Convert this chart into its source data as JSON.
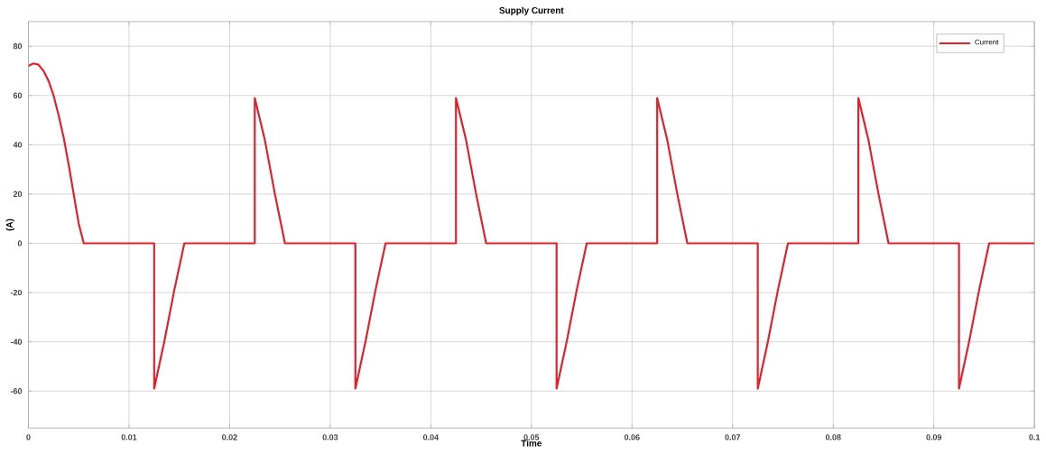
{
  "chart_data": {
    "type": "line",
    "title": "Supply Current",
    "xlabel": "Time",
    "ylabel": "(A)",
    "x": [
      0,
      0.0005,
      0.001,
      0.0015,
      0.002,
      0.0025,
      0.003,
      0.0035,
      0.004,
      0.0045,
      0.005,
      0.0055,
      0.0125,
      0.0125,
      0.0135,
      0.0145,
      0.0155,
      0.0225,
      0.0225,
      0.0235,
      0.0245,
      0.0255,
      0.0325,
      0.0325,
      0.0335,
      0.0345,
      0.0355,
      0.0425,
      0.0425,
      0.0435,
      0.0445,
      0.0455,
      0.0525,
      0.0525,
      0.0535,
      0.0545,
      0.0555,
      0.0625,
      0.0625,
      0.0635,
      0.0645,
      0.0655,
      0.0725,
      0.0725,
      0.0735,
      0.0745,
      0.0755,
      0.0825,
      0.0825,
      0.0835,
      0.0845,
      0.0855,
      0.0925,
      0.0925,
      0.0935,
      0.0945,
      0.0955,
      0.1
    ],
    "series": [
      {
        "name": "Current",
        "color": "#e0202a",
        "values": [
          72,
          73,
          72.5,
          70,
          66,
          60,
          52,
          43,
          32,
          20,
          8,
          0,
          0,
          -59,
          -40,
          -19,
          0,
          0,
          59,
          42,
          20,
          0,
          0,
          -59,
          -40,
          -19,
          0,
          0,
          59,
          42,
          20,
          0,
          0,
          -59,
          -40,
          -19,
          0,
          0,
          59,
          42,
          20,
          0,
          0,
          -59,
          -40,
          -19,
          0,
          0,
          59,
          42,
          20,
          0,
          0,
          -59,
          -40,
          -19,
          0,
          0
        ]
      }
    ],
    "xlim": [
      0,
      0.1
    ],
    "ylim": [
      -75,
      90
    ],
    "xticks": [
      0,
      0.01,
      0.02,
      0.03,
      0.04,
      0.05,
      0.06,
      0.07,
      0.08,
      0.09,
      0.1
    ],
    "yticks": [
      -60,
      -40,
      -20,
      0,
      20,
      40,
      60,
      80
    ],
    "grid": true,
    "legend": "top right",
    "line_style": "solid",
    "marker": "none"
  }
}
